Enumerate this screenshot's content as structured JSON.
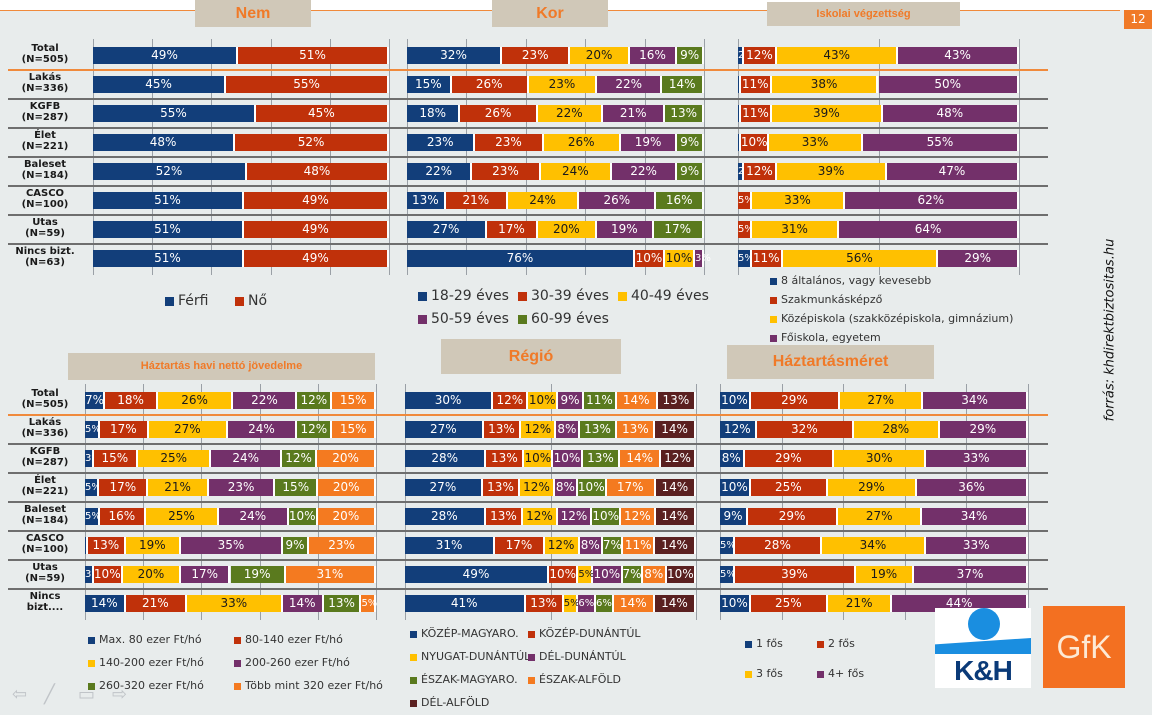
{
  "page": {
    "number": "12",
    "source": "forrás: khdirektbiztositas.hu",
    "logos": {
      "kh": "K&H",
      "gfk": "GfK"
    }
  },
  "colors": {
    "navy": "#123e7a",
    "red": "#c0310a",
    "yellow": "#ffc000",
    "purple": "#73306a",
    "green": "#5a7a1e",
    "orange": "#f47a20",
    "brown": "#5a2020"
  },
  "row_labels": [
    [
      "Total",
      "(N=505)"
    ],
    [
      "Lakás",
      "(N=336)"
    ],
    [
      "KGFB",
      "(N=287)"
    ],
    [
      "Élet",
      "(N=221)"
    ],
    [
      "Baleset",
      "(N=184)"
    ],
    [
      "CASCO",
      "(N=100)"
    ],
    [
      "Utas",
      "(N=59)"
    ],
    [
      "Nincs bizt.",
      "(N=63)"
    ]
  ],
  "row_labels_bottom_last": [
    "Nincs",
    "bizt...."
  ],
  "chart_data": [
    {
      "id": "nem",
      "type": "bar",
      "stacked": true,
      "orientation": "horizontal",
      "title": "Nem",
      "categories": [
        "Total (N=505)",
        "Lakás (N=336)",
        "KGFB (N=287)",
        "Élet (N=221)",
        "Baleset (N=184)",
        "CASCO (N=100)",
        "Utas (N=59)",
        "Nincs bizt. (N=63)"
      ],
      "series": [
        {
          "name": "Férfi",
          "color": "#123e7a",
          "values": [
            49,
            45,
            55,
            48,
            52,
            51,
            51,
            51
          ]
        },
        {
          "name": "Nő",
          "color": "#c0310a",
          "values": [
            51,
            55,
            45,
            52,
            48,
            49,
            49,
            49
          ]
        }
      ],
      "xlim": [
        0,
        100
      ],
      "legend": "bottom"
    },
    {
      "id": "kor",
      "type": "bar",
      "stacked": true,
      "orientation": "horizontal",
      "title": "Kor",
      "categories": [
        "Total (N=505)",
        "Lakás (N=336)",
        "KGFB (N=287)",
        "Élet (N=221)",
        "Baleset (N=184)",
        "CASCO (N=100)",
        "Utas (N=59)",
        "Nincs bizt. (N=63)"
      ],
      "series": [
        {
          "name": "18-29 éves",
          "color": "#123e7a",
          "values": [
            32,
            15,
            18,
            23,
            22,
            13,
            27,
            76
          ]
        },
        {
          "name": "30-39 éves",
          "color": "#c0310a",
          "values": [
            23,
            26,
            26,
            23,
            23,
            21,
            17,
            10
          ]
        },
        {
          "name": "40-49 éves",
          "color": "#ffc000",
          "values": [
            20,
            23,
            22,
            26,
            24,
            24,
            20,
            10
          ]
        },
        {
          "name": "50-59 éves",
          "color": "#73306a",
          "values": [
            16,
            22,
            21,
            19,
            22,
            26,
            19,
            3
          ]
        },
        {
          "name": "60-99 éves",
          "color": "#5a7a1e",
          "values": [
            9,
            14,
            13,
            9,
            9,
            16,
            17,
            0
          ]
        }
      ],
      "xlim": [
        0,
        100
      ],
      "legend": "bottom"
    },
    {
      "id": "iskolai",
      "type": "bar",
      "stacked": true,
      "orientation": "horizontal",
      "title": "Iskolai végzettség",
      "categories": [
        "Total (N=505)",
        "Lakás (N=336)",
        "KGFB (N=287)",
        "Élet (N=221)",
        "Baleset (N=184)",
        "CASCO (N=100)",
        "Utas (N=59)",
        "Nincs bizt. (N=63)"
      ],
      "series": [
        {
          "name": "8 általános, vagy kevesebb",
          "color": "#123e7a",
          "values": [
            2,
            1,
            1,
            1,
            2,
            0,
            0,
            5
          ]
        },
        {
          "name": "Szakmunkásképző",
          "color": "#c0310a",
          "values": [
            12,
            11,
            11,
            10,
            12,
            5,
            5,
            11
          ]
        },
        {
          "name": "Középiskola (szakközépiskola, gimnázium)",
          "color": "#ffc000",
          "values": [
            43,
            38,
            39,
            33,
            39,
            33,
            31,
            56
          ]
        },
        {
          "name": "Főiskola, egyetem",
          "color": "#73306a",
          "values": [
            43,
            50,
            48,
            55,
            47,
            62,
            64,
            29
          ]
        }
      ],
      "xlim": [
        0,
        100
      ],
      "legend": "bottom"
    },
    {
      "id": "jovedelem",
      "type": "bar",
      "stacked": true,
      "orientation": "horizontal",
      "title": "Háztartás havi nettó jövedelme",
      "categories": [
        "Total (N=505)",
        "Lakás (N=336)",
        "KGFB (N=287)",
        "Élet (N=221)",
        "Baleset (N=184)",
        "CASCO (N=100)",
        "Utas (N=59)",
        "Nincs bizt...."
      ],
      "series": [
        {
          "name": "Max. 80 ezer Ft/hó",
          "color": "#123e7a",
          "values": [
            7,
            5,
            3,
            5,
            5,
            1,
            3,
            14
          ]
        },
        {
          "name": "80-140 ezer Ft/hó",
          "color": "#c0310a",
          "values": [
            18,
            17,
            15,
            17,
            16,
            13,
            10,
            21
          ]
        },
        {
          "name": "140-200 ezer Ft/hó",
          "color": "#ffc000",
          "values": [
            26,
            27,
            25,
            21,
            25,
            19,
            20,
            33
          ]
        },
        {
          "name": "200-260 ezer Ft/hó",
          "color": "#73306a",
          "values": [
            22,
            24,
            24,
            23,
            24,
            35,
            17,
            14
          ]
        },
        {
          "name": "260-320 ezer Ft/hó",
          "color": "#5a7a1e",
          "values": [
            12,
            12,
            12,
            15,
            10,
            9,
            19,
            13
          ]
        },
        {
          "name": "Több mint 320 ezer Ft/hó",
          "color": "#f47a20",
          "values": [
            15,
            15,
            20,
            20,
            20,
            23,
            31,
            5
          ]
        }
      ],
      "xlim": [
        0,
        100
      ],
      "legend": "bottom"
    },
    {
      "id": "regio",
      "type": "bar",
      "stacked": true,
      "orientation": "horizontal",
      "title": "Régió",
      "categories": [
        "Total (N=505)",
        "Lakás (N=336)",
        "KGFB (N=287)",
        "Élet (N=221)",
        "Baleset (N=184)",
        "CASCO (N=100)",
        "Utas (N=59)",
        "Nincs bizt...."
      ],
      "series": [
        {
          "name": "KÖZÉP-MAGYARO.",
          "color": "#123e7a",
          "values": [
            30,
            27,
            28,
            27,
            28,
            31,
            49,
            41
          ]
        },
        {
          "name": "KÖZÉP-DUNÁNTÚL",
          "color": "#c0310a",
          "values": [
            12,
            13,
            13,
            13,
            13,
            17,
            10,
            13
          ]
        },
        {
          "name": "NYUGAT-DUNÁNTÚL",
          "color": "#ffc000",
          "values": [
            10,
            12,
            10,
            12,
            12,
            12,
            5,
            5
          ]
        },
        {
          "name": "DÉL-DUNÁNTÚL",
          "color": "#73306a",
          "values": [
            9,
            8,
            10,
            8,
            12,
            8,
            10,
            6
          ]
        },
        {
          "name": "ÉSZAK-MAGYARO.",
          "color": "#5a7a1e",
          "values": [
            11,
            13,
            13,
            10,
            10,
            7,
            7,
            6
          ]
        },
        {
          "name": "ÉSZAK-ALFÖLD",
          "color": "#f47a20",
          "values": [
            14,
            13,
            14,
            17,
            12,
            11,
            8,
            14
          ]
        },
        {
          "name": "DÉL-ALFÖLD",
          "color": "#5a2020",
          "values": [
            13,
            14,
            12,
            14,
            14,
            14,
            10,
            14
          ]
        }
      ],
      "xlim": [
        0,
        100
      ],
      "legend": "bottom"
    },
    {
      "id": "haztartasmeret",
      "type": "bar",
      "stacked": true,
      "orientation": "horizontal",
      "title": "Háztartásméret",
      "categories": [
        "Total (N=505)",
        "Lakás (N=336)",
        "KGFB (N=287)",
        "Élet (N=221)",
        "Baleset (N=184)",
        "CASCO (N=100)",
        "Utas (N=59)",
        "Nincs bizt...."
      ],
      "series": [
        {
          "name": "1 fős",
          "color": "#123e7a",
          "values": [
            10,
            12,
            8,
            10,
            9,
            5,
            5,
            10
          ]
        },
        {
          "name": "2 fős",
          "color": "#c0310a",
          "values": [
            29,
            32,
            29,
            25,
            29,
            28,
            39,
            25
          ]
        },
        {
          "name": "3 fős",
          "color": "#ffc000",
          "values": [
            27,
            28,
            30,
            29,
            27,
            34,
            19,
            21
          ]
        },
        {
          "name": "4+ fős",
          "color": "#73306a",
          "values": [
            34,
            29,
            33,
            36,
            34,
            33,
            37,
            44
          ]
        }
      ],
      "xlim": [
        0,
        100
      ],
      "legend": "bottom"
    }
  ]
}
